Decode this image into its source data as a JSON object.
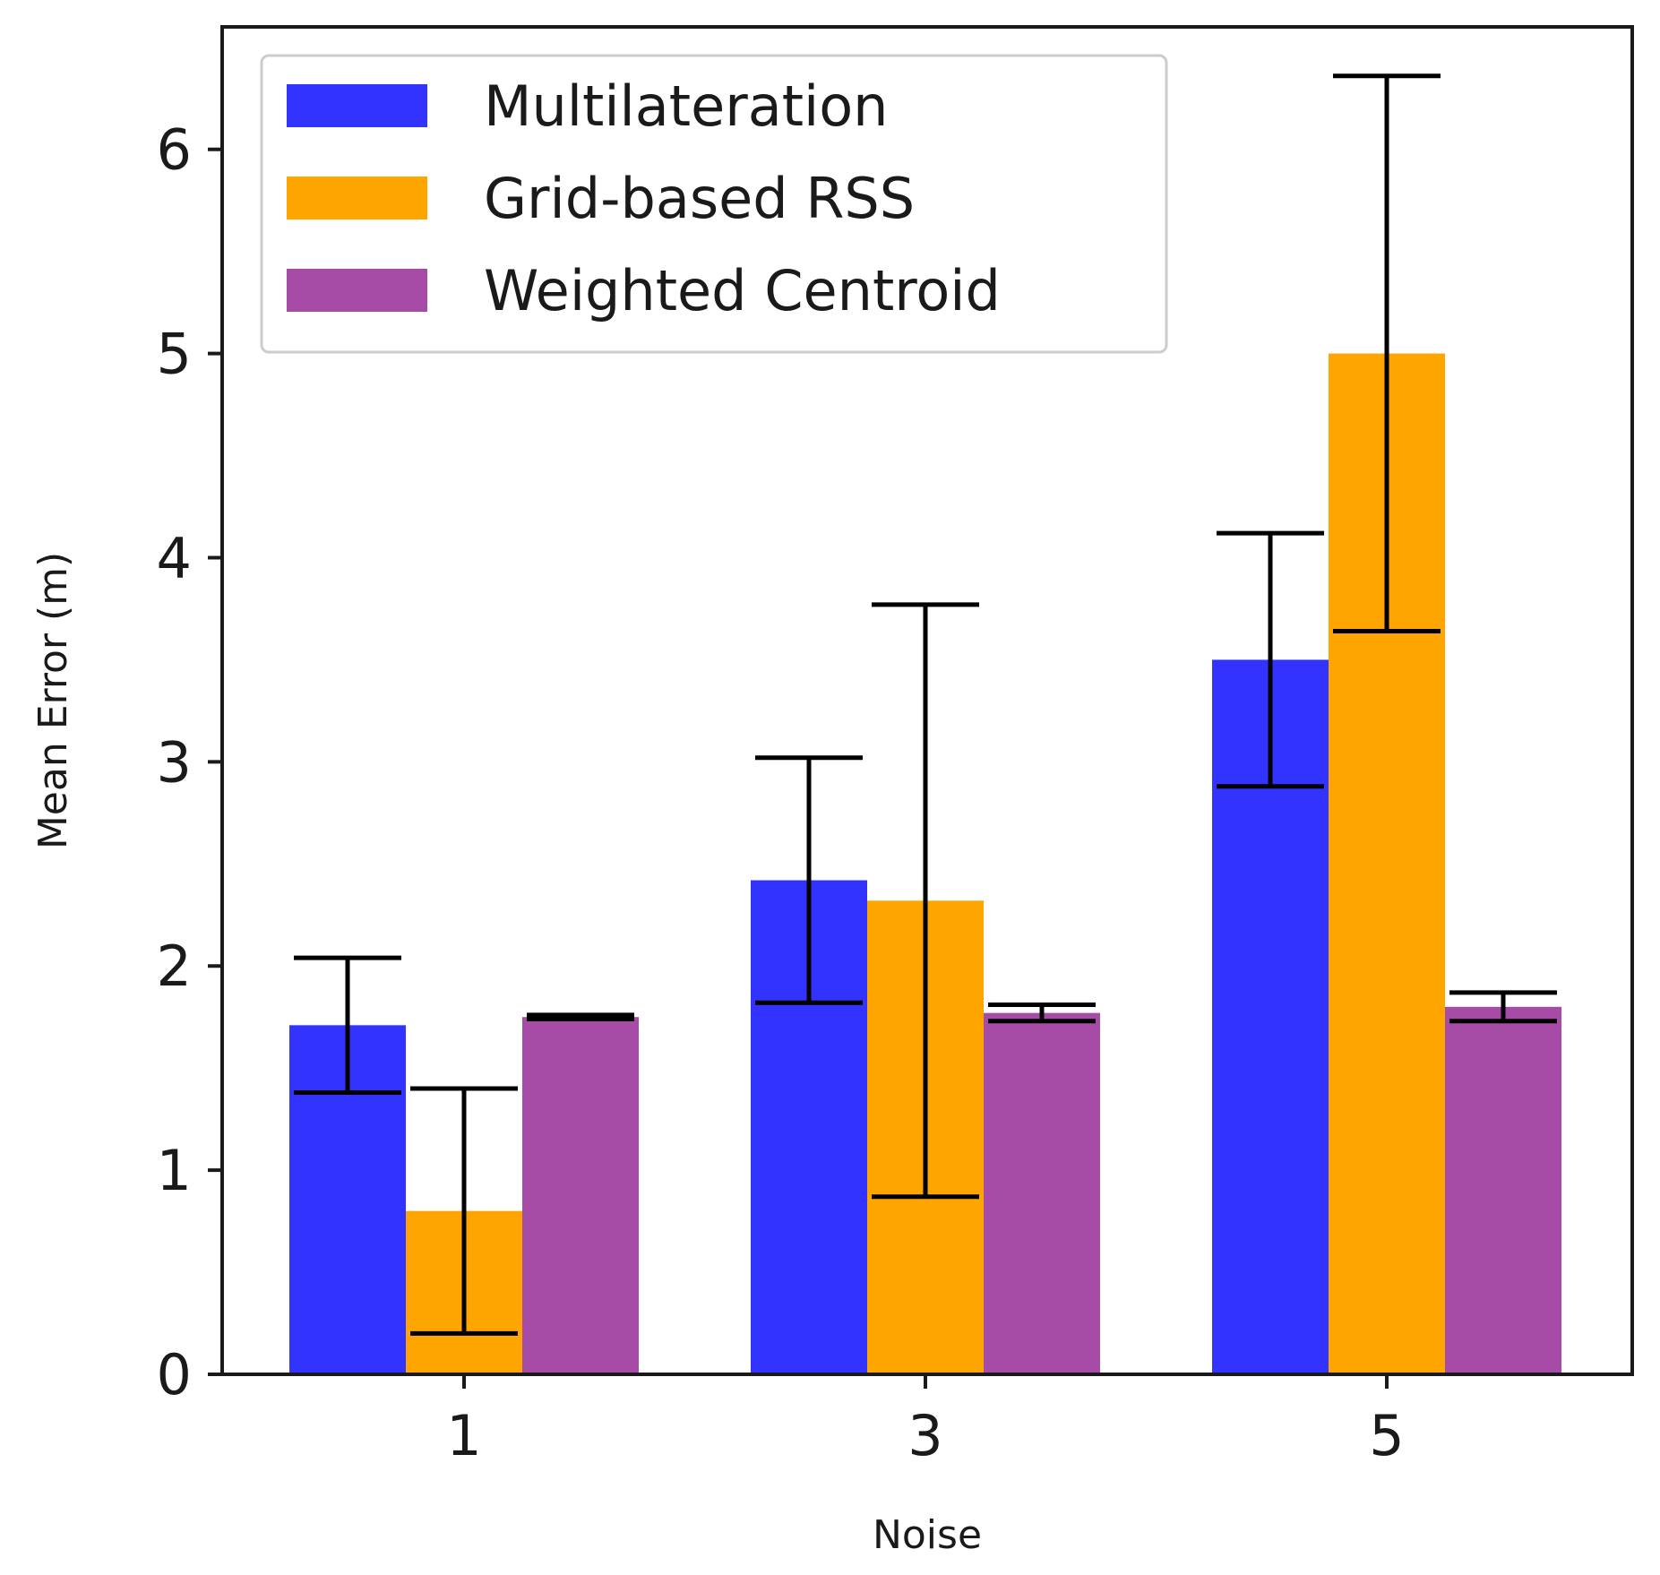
{
  "chart_data": {
    "type": "bar",
    "title": "",
    "xlabel": "Noise",
    "ylabel": "Mean Error (m)",
    "categories": [
      "1",
      "3",
      "5"
    ],
    "ylim": [
      0,
      6.6
    ],
    "yticks": [
      "0",
      "1",
      "2",
      "3",
      "4",
      "5",
      "6"
    ],
    "grid": false,
    "legend_position": "top-left",
    "series": [
      {
        "name": "Multilateration",
        "color": "#3333ff",
        "values": [
          1.71,
          2.42,
          3.5
        ],
        "error": [
          0.33,
          0.6,
          0.62
        ]
      },
      {
        "name": "Grid-based RSS",
        "color": "#ffa500",
        "values": [
          0.8,
          2.32,
          5.0
        ],
        "error": [
          0.6,
          1.45,
          1.36
        ]
      },
      {
        "name": "Weighted Centroid",
        "color": "#a64ca6",
        "values": [
          1.75,
          1.77,
          1.8
        ],
        "error": [
          0.01,
          0.04,
          0.07
        ]
      }
    ]
  }
}
